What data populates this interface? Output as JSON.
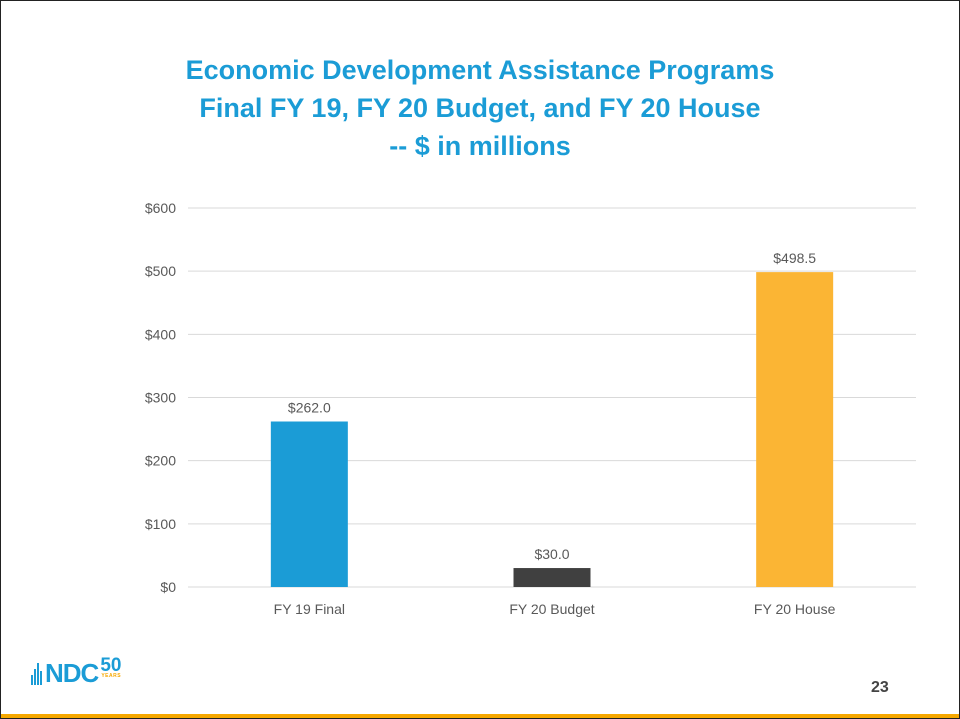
{
  "slide": {
    "title_lines": [
      "Economic Development Assistance Programs",
      "Final FY 19, FY 20 Budget, and FY 20 House",
      "-- $ in millions"
    ],
    "page_number": "23",
    "logo": {
      "letters": "NDC",
      "number": "50",
      "tagline": "YEARS"
    }
  },
  "chart_data": {
    "type": "bar",
    "title": "Economic Development Assistance Programs Final FY 19, FY 20 Budget, and FY 20 House -- $ in millions",
    "categories": [
      "FY 19 Final",
      "FY 20 Budget",
      "FY 20 House"
    ],
    "values": [
      262.0,
      30.0,
      498.5
    ],
    "data_labels": [
      "$262.0",
      "$30.0",
      "$498.5"
    ],
    "bar_colors": [
      "#1b9cd6",
      "#404040",
      "#fbb534"
    ],
    "ylim": [
      0,
      600
    ],
    "yticks": [
      0,
      100,
      200,
      300,
      400,
      500,
      600
    ],
    "ytick_labels": [
      "$0",
      "$100",
      "$200",
      "$300",
      "$400",
      "$500",
      "$600"
    ],
    "xlabel": "",
    "ylabel": "",
    "grid": true,
    "legend": "none"
  },
  "colors": {
    "title": "#1b9cd6",
    "gridline": "#d9d9d9",
    "axis_text": "#595959",
    "accent_bar": "#f6a800"
  }
}
